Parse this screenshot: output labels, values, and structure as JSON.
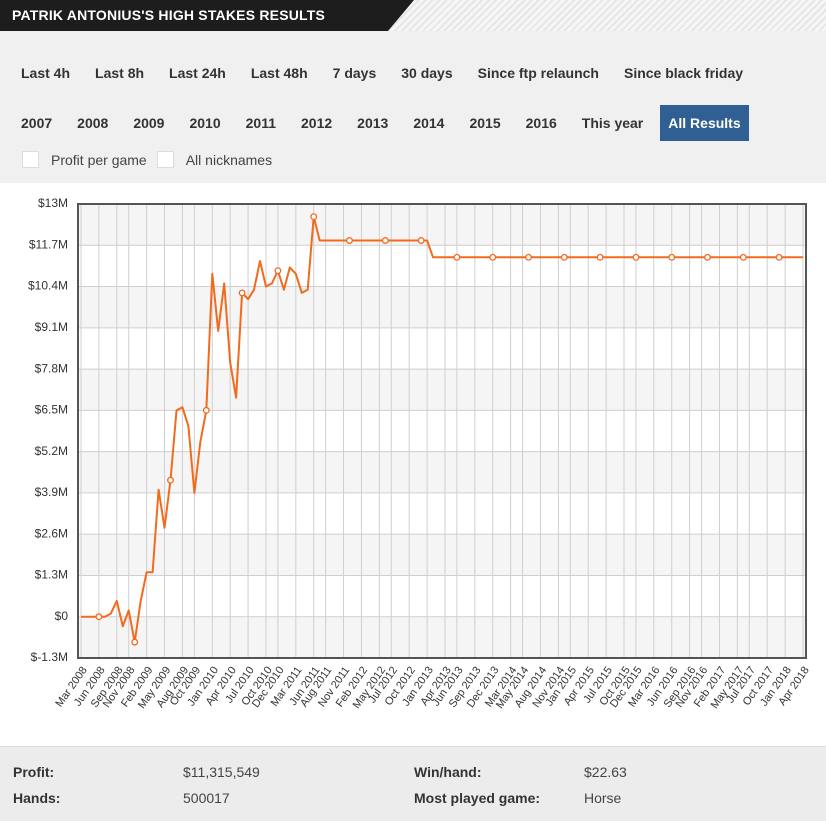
{
  "header": {
    "title": "PATRIK ANTONIUS'S HIGH STAKES RESULTS"
  },
  "filters": {
    "periods": [
      {
        "label": "Last 4h"
      },
      {
        "label": "Last 8h"
      },
      {
        "label": "Last 24h"
      },
      {
        "label": "Last 48h"
      },
      {
        "label": "7 days"
      },
      {
        "label": "30 days"
      },
      {
        "label": "Since ftp relaunch"
      },
      {
        "label": "Since black friday"
      }
    ],
    "years": [
      {
        "label": "2007"
      },
      {
        "label": "2008"
      },
      {
        "label": "2009"
      },
      {
        "label": "2010"
      },
      {
        "label": "2011"
      },
      {
        "label": "2012"
      },
      {
        "label": "2013"
      },
      {
        "label": "2014"
      },
      {
        "label": "2015"
      },
      {
        "label": "2016"
      },
      {
        "label": "This year"
      },
      {
        "label": "All Results",
        "selected": true
      }
    ],
    "options": [
      {
        "label": "Profit per game",
        "checked": false
      },
      {
        "label": "All nicknames",
        "checked": false
      }
    ]
  },
  "chart_data": {
    "type": "line",
    "color": "#f26b1d",
    "grid": true,
    "x": [
      "Mar 2008",
      "Apr 2008",
      "May 2008",
      "Jun 2008",
      "Jul 2008",
      "Aug 2008",
      "Sep 2008",
      "Oct 2008",
      "Nov 2008",
      "Dec 2008",
      "Jan 2009",
      "Feb 2009",
      "Mar 2009",
      "Apr 2009",
      "May 2009",
      "Jun 2009",
      "Jul 2009",
      "Aug 2009",
      "Sep 2009",
      "Oct 2009",
      "Nov 2009",
      "Dec 2009",
      "Jan 2010",
      "Feb 2010",
      "Mar 2010",
      "Apr 2010",
      "May 2010",
      "Jun 2010",
      "Jul 2010",
      "Aug 2010",
      "Sep 2010",
      "Oct 2010",
      "Nov 2010",
      "Dec 2010",
      "Jan 2011",
      "Feb 2011",
      "Mar 2011",
      "Apr 2011",
      "May 2011",
      "Jun 2011",
      "Jul 2011",
      "Aug 2011",
      "Sep 2011",
      "Oct 2011",
      "Nov 2011",
      "Dec 2011",
      "Jan 2012",
      "Feb 2012",
      "Mar 2012",
      "Apr 2012",
      "May 2012",
      "Jun 2012",
      "Jul 2012",
      "Aug 2012",
      "Sep 2012",
      "Oct 2012",
      "Nov 2012",
      "Dec 2012",
      "Jan 2013",
      "Feb 2013",
      "Mar 2013",
      "Apr 2013",
      "May 2013",
      "Jun 2013",
      "Jul 2013",
      "Aug 2013",
      "Sep 2013",
      "Oct 2013",
      "Nov 2013",
      "Dec 2013",
      "Jan 2014",
      "Feb 2014",
      "Mar 2014",
      "Apr 2014",
      "May 2014",
      "Jun 2014",
      "Jul 2014",
      "Aug 2014",
      "Sep 2014",
      "Oct 2014",
      "Nov 2014",
      "Dec 2014",
      "Jan 2015",
      "Feb 2015",
      "Mar 2015",
      "Apr 2015",
      "May 2015",
      "Jun 2015",
      "Jul 2015",
      "Aug 2015",
      "Sep 2015",
      "Oct 2015",
      "Nov 2015",
      "Dec 2015",
      "Jan 2016",
      "Feb 2016",
      "Mar 2016",
      "Apr 2016",
      "May 2016",
      "Jun 2016",
      "Jul 2016",
      "Aug 2016",
      "Sep 2016",
      "Oct 2016",
      "Nov 2016",
      "Dec 2016",
      "Jan 2017",
      "Feb 2017",
      "Mar 2017",
      "Apr 2017",
      "May 2017",
      "Jun 2017",
      "Jul 2017",
      "Aug 2017",
      "Sep 2017",
      "Oct 2017",
      "Nov 2017",
      "Dec 2017",
      "Jan 2018",
      "Feb 2018",
      "Mar 2018",
      "Apr 2018"
    ],
    "values": [
      0,
      0,
      0,
      0,
      0,
      100000,
      500000,
      -300000,
      200000,
      -800000,
      500000,
      1400000,
      1400000,
      4000000,
      2800000,
      4300000,
      6500000,
      6600000,
      6000000,
      3900000,
      5500000,
      6500000,
      10800000,
      9000000,
      10500000,
      8000000,
      6900000,
      10200000,
      10000000,
      10300000,
      11200000,
      10400000,
      10500000,
      10900000,
      10300000,
      11000000,
      10800000,
      10200000,
      10300000,
      12600000,
      11850000,
      11850000,
      11850000,
      11850000,
      11850000,
      11850000,
      11850000,
      11850000,
      11850000,
      11850000,
      11850000,
      11850000,
      11850000,
      11850000,
      11850000,
      11850000,
      11850000,
      11850000,
      11850000,
      11320000,
      11320000,
      11320000,
      11320000,
      11320000,
      11320000,
      11320000,
      11320000,
      11320000,
      11320000,
      11320000,
      11320000,
      11320000,
      11320000,
      11320000,
      11320000,
      11320000,
      11320000,
      11320000,
      11320000,
      11320000,
      11320000,
      11320000,
      11320000,
      11320000,
      11320000,
      11320000,
      11320000,
      11320000,
      11320000,
      11320000,
      11320000,
      11320000,
      11320000,
      11320000,
      11320000,
      11320000,
      11320000,
      11320000,
      11320000,
      11320000,
      11320000,
      11320000,
      11320000,
      11320000,
      11320000,
      11320000,
      11320000,
      11320000,
      11320000,
      11320000,
      11320000,
      11320000,
      11320000,
      11320000,
      11320000,
      11320000,
      11320000,
      11320000,
      11320000,
      11320000,
      11320000,
      11320000
    ],
    "xlim": [
      "Mar 2008",
      "Apr 2018"
    ],
    "xticks": [
      "Mar 2008",
      "Jun 2008",
      "Sep 2008",
      "Nov 2008",
      "Feb 2009",
      "May 2009",
      "Aug 2009",
      "Oct 2009",
      "Jan 2010",
      "Apr 2010",
      "Jul 2010",
      "Oct 2010",
      "Dec 2010",
      "Mar 2011",
      "Jun 2011",
      "Aug 2011",
      "Nov 2011",
      "Feb 2012",
      "May 2012",
      "Jul 2012",
      "Oct 2012",
      "Jan 2013",
      "Apr 2013",
      "Jun 2013",
      "Sep 2013",
      "Dec 2013",
      "Mar 2014",
      "May 2014",
      "Aug 2014",
      "Nov 2014",
      "Jan 2015",
      "Apr 2015",
      "Jul 2015",
      "Oct 2015",
      "Dec 2015",
      "Mar 2016",
      "Jun 2016",
      "Sep 2016",
      "Nov 2016",
      "Feb 2017",
      "May 2017",
      "Jul 2017",
      "Oct 2017",
      "Jan 2018",
      "Apr 2018"
    ],
    "ylim": [
      -1300000,
      13000000
    ],
    "yticks": [
      {
        "value": -1300000,
        "label": "$-1.3M"
      },
      {
        "value": 0,
        "label": "$0"
      },
      {
        "value": 1300000,
        "label": "$1.3M"
      },
      {
        "value": 2600000,
        "label": "$2.6M"
      },
      {
        "value": 3900000,
        "label": "$3.9M"
      },
      {
        "value": 5200000,
        "label": "$5.2M"
      },
      {
        "value": 6500000,
        "label": "$6.5M"
      },
      {
        "value": 7800000,
        "label": "$7.8M"
      },
      {
        "value": 9100000,
        "label": "$9.1M"
      },
      {
        "value": 10400000,
        "label": "$10.4M"
      },
      {
        "value": 11700000,
        "label": "$11.7M"
      },
      {
        "value": 13000000,
        "label": "$13M"
      }
    ]
  },
  "stats": [
    [
      {
        "label": "Profit:",
        "value": "$11,315,549"
      },
      {
        "label": "Win/hand:",
        "value": "$22.63"
      }
    ],
    [
      {
        "label": "Hands:",
        "value": "500017"
      },
      {
        "label": "Most played game:",
        "value": "Horse"
      }
    ]
  ]
}
